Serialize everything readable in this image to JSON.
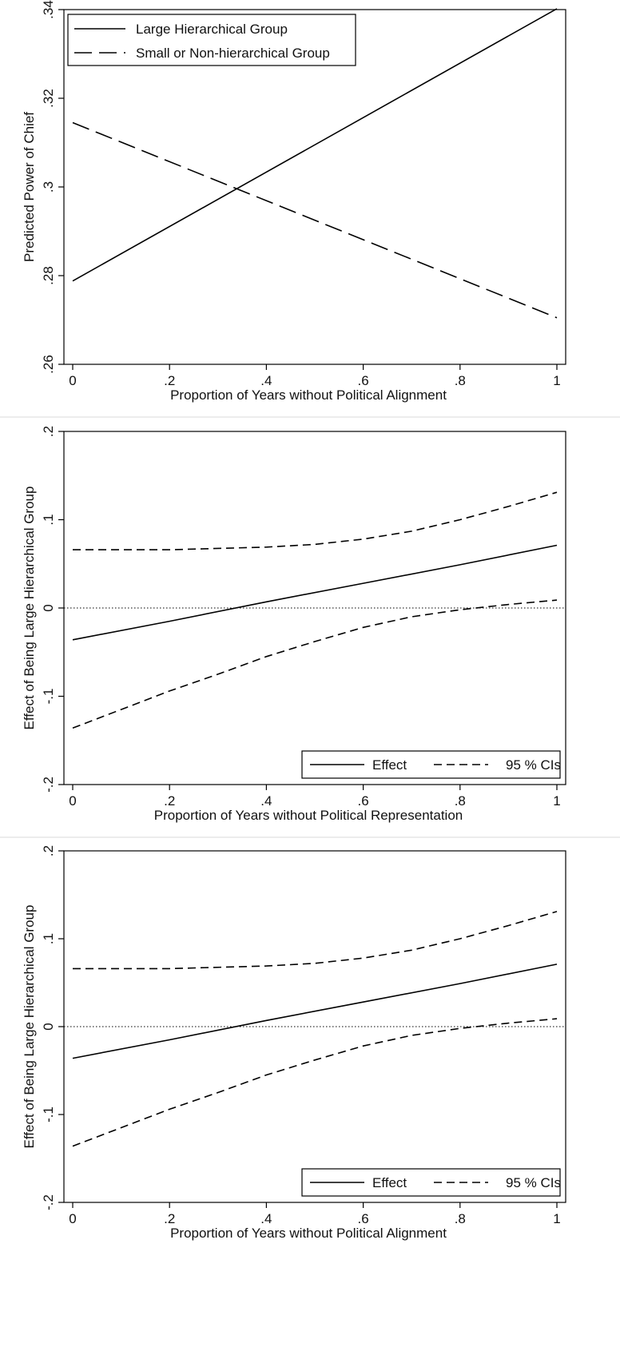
{
  "chart_data": [
    {
      "type": "line",
      "title": "",
      "xlabel": "Proportion of Years without Political Alignment",
      "ylabel": "Predicted Power of Chief",
      "xlim": [
        0,
        1
      ],
      "ylim": [
        0.26,
        0.34
      ],
      "xticks": [
        0,
        0.2,
        0.4,
        0.6,
        0.8,
        1
      ],
      "xtick_labels": [
        "0",
        ".2",
        ".4",
        ".6",
        ".8",
        "1"
      ],
      "yticks": [
        0.26,
        0.28,
        0.3,
        0.32,
        0.34
      ],
      "ytick_labels": [
        ".26",
        ".28",
        ".3",
        ".32",
        ".34"
      ],
      "legend_position": "top-left",
      "grid": false,
      "series": [
        {
          "name": "Large Hierarchical Group",
          "style": "solid",
          "x": [
            0,
            1
          ],
          "y": [
            0.2788,
            0.3402
          ]
        },
        {
          "name": "Small or Non-hierarchical Group",
          "style": "longdash",
          "x": [
            0,
            1
          ],
          "y": [
            0.3145,
            0.2705
          ]
        }
      ]
    },
    {
      "type": "line",
      "title": "",
      "xlabel": "Proportion of Years without Political Representation",
      "ylabel": "Effect of Being Large Hierarchical Group",
      "xlim": [
        0,
        1
      ],
      "ylim": [
        -0.2,
        0.2
      ],
      "xticks": [
        0,
        0.2,
        0.4,
        0.6,
        0.8,
        1
      ],
      "xtick_labels": [
        "0",
        ".2",
        ".4",
        ".6",
        ".8",
        "1"
      ],
      "yticks": [
        -0.2,
        -0.1,
        0,
        0.1,
        0.2
      ],
      "ytick_labels": [
        "-.2",
        "-.1",
        "0",
        ".1",
        ".2"
      ],
      "reference_line_y": 0,
      "legend_position": "bottom-right",
      "grid": false,
      "series": [
        {
          "name": "Effect",
          "style": "solid",
          "x": [
            0,
            0.2,
            0.4,
            0.6,
            0.8,
            1
          ],
          "y": [
            -0.036,
            -0.015,
            0.007,
            0.028,
            0.049,
            0.071
          ]
        },
        {
          "name": "95 % CIs",
          "style": "dash",
          "x": [
            0,
            0.2,
            0.4,
            0.5,
            0.6,
            0.7,
            0.8,
            0.9,
            1
          ],
          "y": [
            0.066,
            0.066,
            0.069,
            0.072,
            0.078,
            0.087,
            0.1,
            0.115,
            0.131
          ]
        },
        {
          "name": "95 % CIs (lower)",
          "style": "dash",
          "x": [
            0,
            0.1,
            0.2,
            0.3,
            0.4,
            0.5,
            0.6,
            0.7,
            0.8,
            0.9,
            1
          ],
          "y": [
            -0.136,
            -0.115,
            -0.094,
            -0.075,
            -0.055,
            -0.038,
            -0.022,
            -0.01,
            -0.002,
            0.004,
            0.009
          ]
        }
      ]
    },
    {
      "type": "line",
      "title": "",
      "xlabel": "Proportion of Years without Political Alignment",
      "ylabel": "Effect of Being Large Hierarchical Group",
      "xlim": [
        0,
        1
      ],
      "ylim": [
        -0.2,
        0.2
      ],
      "xticks": [
        0,
        0.2,
        0.4,
        0.6,
        0.8,
        1
      ],
      "xtick_labels": [
        "0",
        ".2",
        ".4",
        ".6",
        ".8",
        "1"
      ],
      "yticks": [
        -0.2,
        -0.1,
        0,
        0.1,
        0.2
      ],
      "ytick_labels": [
        "-.2",
        "-.1",
        "0",
        ".1",
        ".2"
      ],
      "reference_line_y": 0,
      "legend_position": "bottom-right",
      "grid": false,
      "series": [
        {
          "name": "Effect",
          "style": "solid",
          "x": [
            0,
            0.2,
            0.4,
            0.6,
            0.8,
            1
          ],
          "y": [
            -0.036,
            -0.015,
            0.007,
            0.028,
            0.049,
            0.071
          ]
        },
        {
          "name": "95 % CIs",
          "style": "dash",
          "x": [
            0,
            0.2,
            0.4,
            0.5,
            0.6,
            0.7,
            0.8,
            0.9,
            1
          ],
          "y": [
            0.066,
            0.066,
            0.069,
            0.072,
            0.078,
            0.087,
            0.1,
            0.115,
            0.131
          ]
        },
        {
          "name": "95 % CIs (lower)",
          "style": "dash",
          "x": [
            0,
            0.1,
            0.2,
            0.3,
            0.4,
            0.5,
            0.6,
            0.7,
            0.8,
            0.9,
            1
          ],
          "y": [
            -0.136,
            -0.115,
            -0.094,
            -0.075,
            -0.055,
            -0.038,
            -0.022,
            -0.01,
            -0.002,
            0.004,
            0.009
          ]
        }
      ]
    }
  ]
}
